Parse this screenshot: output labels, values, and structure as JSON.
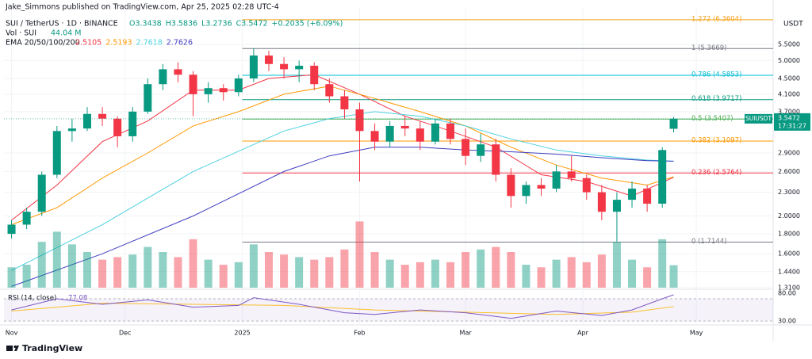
{
  "header": {
    "publisher": "Jake_Simmons published on TradingView.com, Apr 25, 2025 02:28 UTC-4",
    "symbol": "SUI / TetherUS · 1D · BINANCE",
    "ohlc": [
      "O3.3438",
      "H3.5836",
      "L3.2736",
      "C3.5472",
      "+0.2035 (+6.09%)"
    ],
    "volume_label": "Vol · SUI",
    "volume_value": "44.04 M",
    "ema_label": "EMA 20/50/100/200",
    "ema_values": [
      "2.5105",
      "2.5193",
      "2.7618",
      "2.7626"
    ]
  },
  "chart_data": {
    "type": "candlestick",
    "currency": "USDT",
    "log_scale": true,
    "x": [
      0,
      4,
      8,
      12,
      16,
      20,
      24,
      28,
      32,
      36,
      40,
      44,
      48,
      52,
      56,
      60,
      64,
      68,
      72,
      76,
      80,
      84,
      88,
      92,
      96,
      100,
      104,
      108,
      112,
      116,
      120,
      124,
      128,
      132,
      136,
      140,
      144,
      148,
      152,
      156,
      160,
      164,
      168,
      172,
      175
    ],
    "open": [
      1.8,
      1.9,
      2.05,
      2.55,
      3.3,
      3.35,
      3.65,
      3.55,
      3.2,
      3.7,
      4.35,
      4.75,
      4.6,
      4.1,
      4.25,
      4.15,
      4.5,
      5.15,
      4.9,
      4.75,
      4.85,
      4.35,
      4.05,
      3.75,
      3.3,
      3.1,
      3.4,
      3.35,
      3.1,
      3.45,
      3.15,
      2.85,
      3.05,
      2.55,
      2.25,
      2.4,
      2.35,
      2.6,
      2.5,
      2.3,
      2.05,
      2.2,
      2.35,
      2.15,
      3.3438
    ],
    "high": [
      1.95,
      2.1,
      2.6,
      3.4,
      3.55,
      3.8,
      3.8,
      3.6,
      3.8,
      4.5,
      4.9,
      4.95,
      4.7,
      4.4,
      4.35,
      4.6,
      5.37,
      5.3,
      5.1,
      5.0,
      4.95,
      4.5,
      4.2,
      3.9,
      3.45,
      3.5,
      3.6,
      3.5,
      3.55,
      3.55,
      3.35,
      3.25,
      3.15,
      2.65,
      2.45,
      2.5,
      2.7,
      2.85,
      2.55,
      2.4,
      2.3,
      2.45,
      2.4,
      3.0,
      3.5836
    ],
    "low": [
      1.75,
      1.85,
      2.0,
      2.5,
      3.1,
      3.3,
      3.4,
      3.0,
      3.1,
      3.65,
      4.2,
      4.4,
      3.6,
      3.9,
      3.95,
      4.05,
      4.4,
      4.7,
      4.5,
      4.4,
      4.2,
      3.9,
      3.55,
      2.45,
      2.95,
      3.0,
      3.2,
      2.95,
      3.05,
      3.05,
      2.7,
      2.75,
      2.45,
      2.1,
      2.15,
      2.25,
      2.3,
      2.45,
      2.2,
      1.95,
      1.72,
      2.1,
      2.05,
      2.1,
      3.2736
    ],
    "close": [
      1.9,
      2.05,
      2.55,
      3.3,
      3.35,
      3.65,
      3.55,
      3.2,
      3.7,
      4.35,
      4.75,
      4.6,
      4.1,
      4.25,
      4.15,
      4.5,
      5.15,
      4.9,
      4.75,
      4.85,
      4.35,
      4.05,
      3.75,
      3.3,
      3.1,
      3.4,
      3.35,
      3.1,
      3.45,
      3.15,
      2.85,
      3.05,
      2.55,
      2.25,
      2.4,
      2.35,
      2.6,
      2.5,
      2.3,
      2.05,
      2.2,
      2.35,
      2.15,
      2.95,
      3.5472
    ],
    "volume": [
      40,
      45,
      90,
      110,
      85,
      70,
      55,
      60,
      65,
      80,
      70,
      60,
      95,
      55,
      45,
      50,
      85,
      70,
      65,
      60,
      55,
      60,
      75,
      130,
      70,
      55,
      45,
      50,
      55,
      50,
      70,
      75,
      80,
      70,
      45,
      40,
      55,
      60,
      50,
      65,
      90,
      55,
      40,
      95,
      44.04
    ],
    "vlim": [
      0,
      140
    ],
    "up_color": "#089981",
    "down_color": "#f23645",
    "xlim": [
      -2,
      201.3
    ],
    "ylim": [
      1.298,
      6.82
    ],
    "xticks": [
      {
        "value": 0,
        "label": "Nov"
      },
      {
        "value": 30,
        "label": "Dec"
      },
      {
        "value": 61,
        "label": "2025"
      },
      {
        "value": 92,
        "label": "Feb"
      },
      {
        "value": 120,
        "label": "Mar"
      },
      {
        "value": 151,
        "label": "Apr"
      },
      {
        "value": 181,
        "label": "May"
      }
    ],
    "yticks": [
      {
        "value": 5.5,
        "label": "5.5000"
      },
      {
        "value": 5.0,
        "label": "5.0000"
      },
      {
        "value": 4.5,
        "label": "4.5000"
      },
      {
        "value": 4.1,
        "label": "4.1000"
      },
      {
        "value": 3.7,
        "label": "3.7000"
      },
      {
        "value": 2.9,
        "label": "2.9000"
      },
      {
        "value": 2.6,
        "label": "2.6000"
      },
      {
        "value": 2.3,
        "label": "2.3000"
      },
      {
        "value": 2.0,
        "label": "2.0000"
      },
      {
        "value": 1.8,
        "label": "1.8000"
      },
      {
        "value": 1.6,
        "label": "1.6000"
      },
      {
        "value": 1.44,
        "label": "1.4400"
      },
      {
        "value": 1.31,
        "label": "1.3100"
      }
    ],
    "series": [
      {
        "color": "#f23645",
        "x": [
          0,
          12,
          24,
          36,
          48,
          60,
          68,
          80,
          92,
          104,
          116,
          128,
          140,
          152,
          164,
          175
        ],
        "values": [
          1.95,
          2.4,
          3.1,
          3.5,
          4.2,
          4.2,
          4.5,
          4.6,
          4.1,
          3.6,
          3.3,
          3.0,
          2.55,
          2.45,
          2.25,
          2.5105
        ]
      },
      {
        "color": "#ff9800",
        "x": [
          0,
          12,
          24,
          36,
          48,
          60,
          72,
          84,
          96,
          108,
          120,
          132,
          144,
          156,
          168,
          175
        ],
        "values": [
          1.9,
          2.1,
          2.5,
          2.9,
          3.4,
          3.7,
          4.1,
          4.3,
          4.0,
          3.7,
          3.4,
          3.0,
          2.7,
          2.5,
          2.4,
          2.5193
        ]
      },
      {
        "color": "#4dd0e1",
        "x": [
          0,
          24,
          48,
          72,
          84,
          96,
          108,
          120,
          132,
          144,
          156,
          168,
          175
        ],
        "values": [
          1.45,
          1.9,
          2.6,
          3.3,
          3.55,
          3.7,
          3.6,
          3.4,
          3.15,
          2.95,
          2.85,
          2.78,
          2.7618
        ]
      },
      {
        "color": "#3f3fbf",
        "x": [
          0,
          24,
          48,
          72,
          84,
          96,
          108,
          120,
          132,
          144,
          156,
          168,
          175
        ],
        "values": [
          1.32,
          1.6,
          2.0,
          2.6,
          2.85,
          3.0,
          3.0,
          2.95,
          2.92,
          2.88,
          2.82,
          2.77,
          2.7626
        ]
      }
    ],
    "fibonacci": [
      {
        "label": "1.272 (6.3604)",
        "value": 6.3604,
        "color": "#f7a21b"
      },
      {
        "label": "1 (5.3669)",
        "value": 5.3669,
        "color": "#787b86"
      },
      {
        "label": "0.786 (4.5853)",
        "value": 4.5853,
        "color": "#00bcd4"
      },
      {
        "label": "0.618 (3.9717)",
        "value": 3.9717,
        "color": "#089981"
      },
      {
        "label": "0.5 (3.5407)",
        "value": 3.5407,
        "color": "#4caf50"
      },
      {
        "label": "0.382 (3.1097)",
        "value": 3.1097,
        "color": "#ff9800"
      },
      {
        "label": "0.236 (2.5764)",
        "value": 2.5764,
        "color": "#f23645"
      },
      {
        "label": "0 (1.7144)",
        "value": 1.7144,
        "color": "#787b86"
      }
    ],
    "fib_start": 61,
    "price_tag": {
      "symbol": "SUIUSDT",
      "price": "3.5472",
      "value": 3.5472,
      "countdown": "17:31:27"
    },
    "rsi": {
      "label": "RSI (14, close)",
      "value_text": "77.08",
      "ylim": [
        26,
        87
      ],
      "yticks": [
        {
          "value": 80,
          "label": "80.00"
        },
        {
          "value": 30,
          "label": "30.00"
        }
      ],
      "band": [
        70,
        30
      ],
      "color": "#7e57c2",
      "ma_color": "#fbc02d",
      "x": [
        0,
        12,
        24,
        36,
        48,
        60,
        64,
        76,
        88,
        96,
        108,
        120,
        132,
        144,
        156,
        164,
        172,
        175
      ],
      "values": [
        50,
        70,
        60,
        68,
        55,
        58,
        72,
        60,
        45,
        42,
        50,
        45,
        35,
        48,
        40,
        50,
        70,
        77.08
      ],
      "ma_x": [
        0,
        24,
        48,
        72,
        96,
        120,
        144,
        164,
        175
      ],
      "ma_values": [
        48,
        62,
        60,
        58,
        50,
        46,
        42,
        46,
        56
      ]
    },
    "brand": "TradingView"
  }
}
